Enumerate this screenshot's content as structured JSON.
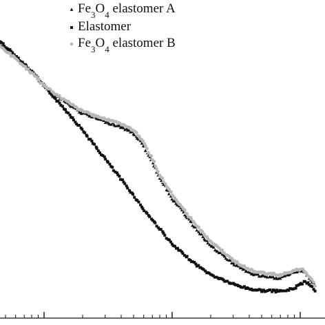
{
  "chart_data": {
    "type": "scatter",
    "x_scale": "log",
    "title": "",
    "xlabel": "",
    "ylabel": "",
    "grid": false,
    "legend_position": "top-center",
    "legend": [
      {
        "key": "A",
        "label_parts": [
          "Fe",
          "3",
          "O",
          "4",
          " elastomer A"
        ],
        "marker": "triangle",
        "color": "#111111"
      },
      {
        "key": "E",
        "label_parts": [
          "Elastomer"
        ],
        "marker": "square",
        "color": "#111111"
      },
      {
        "key": "B",
        "label_parts": [
          "Fe",
          "3",
          "O",
          "4",
          " elastomer B"
        ],
        "marker": "circle",
        "color": "#b8b8b8"
      }
    ],
    "series": [
      {
        "key": "E",
        "x": [
          0.2,
          0.3,
          0.45,
          0.6,
          0.8,
          1,
          1.5,
          2,
          3,
          4,
          5,
          6,
          8,
          10,
          15,
          20,
          30,
          40,
          50,
          70,
          80,
          90,
          100,
          110,
          120,
          130
        ],
        "y": [
          0.955,
          0.93,
          0.885,
          0.84,
          0.79,
          0.745,
          0.665,
          0.605,
          0.515,
          0.45,
          0.4,
          0.355,
          0.295,
          0.245,
          0.185,
          0.15,
          0.12,
          0.105,
          0.1,
          0.098,
          0.101,
          0.108,
          0.12,
          0.128,
          0.118,
          0.1
        ]
      },
      {
        "key": "A",
        "x": [
          0.2,
          0.3,
          0.45,
          0.6,
          0.8,
          1,
          1.5,
          2,
          3,
          4,
          5,
          6,
          7,
          8,
          10,
          15,
          20,
          30,
          40,
          50,
          60,
          70,
          80,
          90,
          100,
          110,
          120,
          130
        ],
        "y": [
          0.95,
          0.925,
          0.875,
          0.835,
          0.79,
          0.745,
          0.69,
          0.658,
          0.632,
          0.615,
          0.595,
          0.555,
          0.505,
          0.455,
          0.39,
          0.3,
          0.24,
          0.185,
          0.155,
          0.145,
          0.14,
          0.14,
          0.15,
          0.155,
          0.165,
          0.155,
          0.135,
          0.115
        ]
      },
      {
        "key": "B",
        "x": [
          0.2,
          0.3,
          0.45,
          0.6,
          0.8,
          1,
          1.5,
          2,
          3,
          4,
          5,
          6,
          7,
          8,
          10,
          15,
          20,
          30,
          40,
          50,
          60,
          70,
          80,
          90,
          100,
          110,
          120,
          130
        ],
        "y": [
          0.94,
          0.915,
          0.87,
          0.83,
          0.785,
          0.745,
          0.695,
          0.665,
          0.64,
          0.625,
          0.605,
          0.565,
          0.515,
          0.465,
          0.4,
          0.31,
          0.255,
          0.195,
          0.165,
          0.155,
          0.152,
          0.15,
          0.158,
          0.162,
          0.168,
          0.16,
          0.14,
          0.118
        ]
      }
    ]
  }
}
